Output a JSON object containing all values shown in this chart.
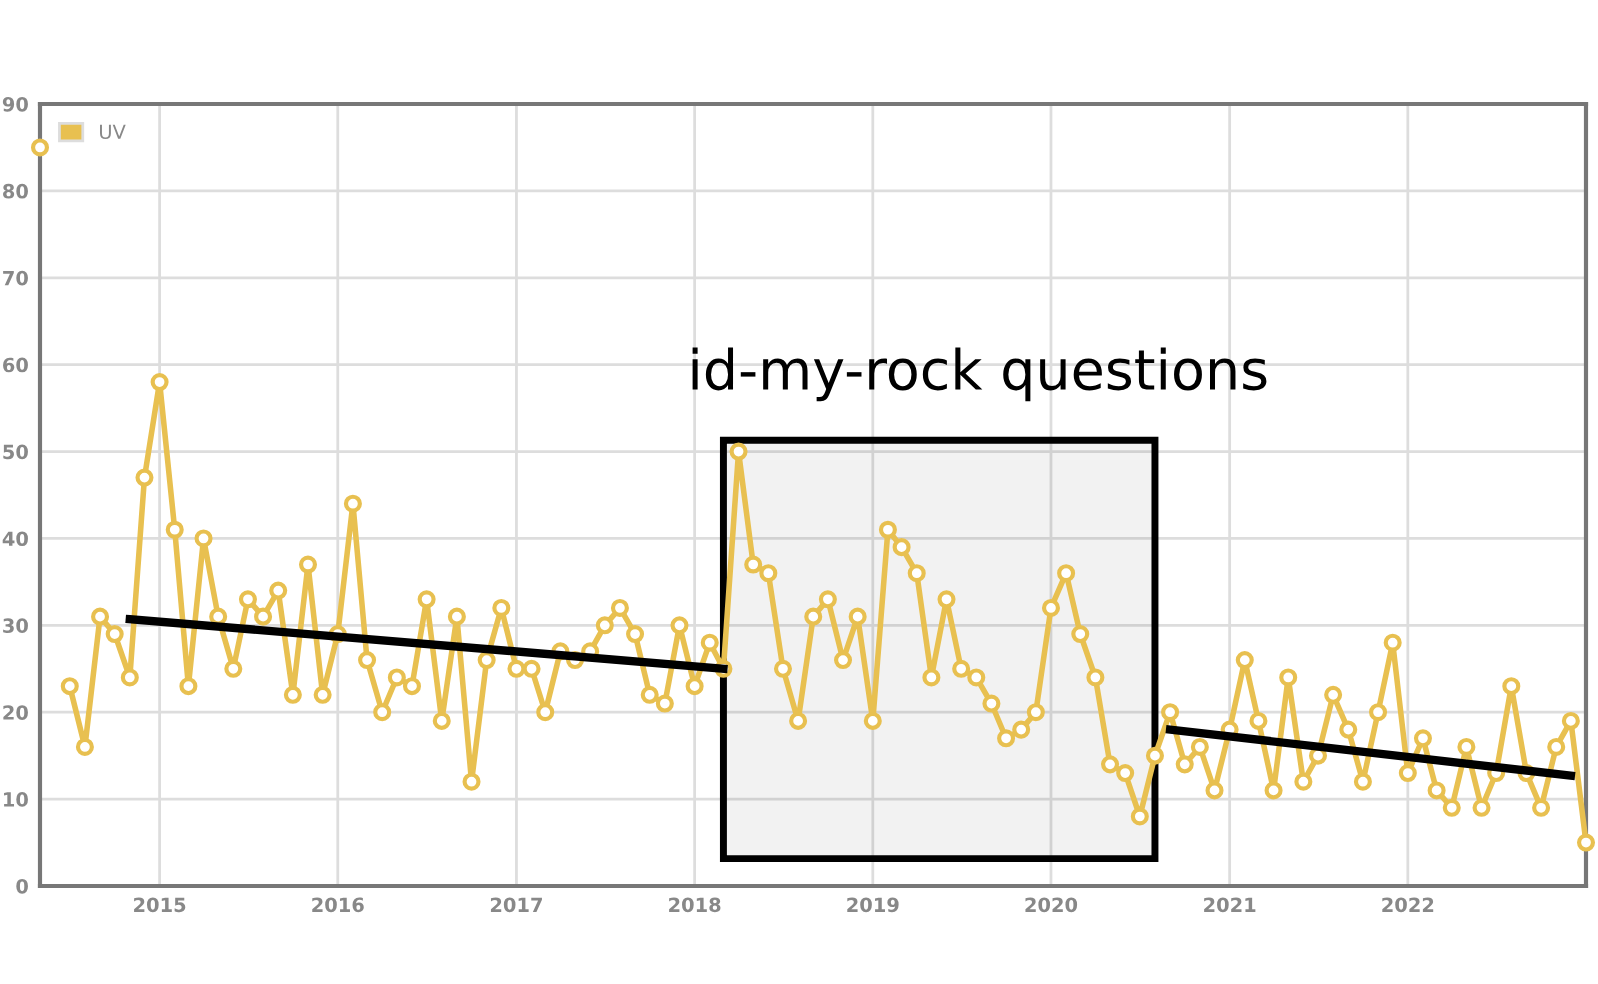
{
  "chart_data": {
    "type": "line",
    "xlim": [
      "2014-05",
      "2023-01"
    ],
    "ylim": [
      0,
      90
    ],
    "yticks": [
      0,
      10,
      20,
      30,
      40,
      50,
      60,
      70,
      80,
      90
    ],
    "xticks": [
      {
        "value": "2015",
        "label": "2015"
      },
      {
        "value": "2016",
        "label": "2016"
      },
      {
        "value": "2017",
        "label": "2017"
      },
      {
        "value": "2018",
        "label": "2018"
      },
      {
        "value": "2019",
        "label": "2019"
      },
      {
        "value": "2020",
        "label": "2020"
      },
      {
        "value": "2021",
        "label": "2021"
      },
      {
        "value": "2022",
        "label": "2022"
      }
    ],
    "grid": true,
    "legend": "top left",
    "marker": "circle",
    "line_style": "solid",
    "x": [
      "2014-05",
      "2014-06",
      "2014-07",
      "2014-08",
      "2014-09",
      "2014-10",
      "2014-11",
      "2014-12",
      "2015-01",
      "2015-02",
      "2015-03",
      "2015-04",
      "2015-05",
      "2015-06",
      "2015-07",
      "2015-08",
      "2015-09",
      "2015-10",
      "2015-11",
      "2015-12",
      "2016-01",
      "2016-02",
      "2016-03",
      "2016-04",
      "2016-05",
      "2016-06",
      "2016-07",
      "2016-08",
      "2016-09",
      "2016-10",
      "2016-11",
      "2016-12",
      "2017-01",
      "2017-02",
      "2017-03",
      "2017-04",
      "2017-05",
      "2017-06",
      "2017-07",
      "2017-08",
      "2017-09",
      "2017-10",
      "2017-11",
      "2017-12",
      "2018-01",
      "2018-02",
      "2018-03",
      "2018-04",
      "2018-05",
      "2018-06",
      "2018-07",
      "2018-08",
      "2018-09",
      "2018-10",
      "2018-11",
      "2018-12",
      "2019-01",
      "2019-02",
      "2019-03",
      "2019-04",
      "2019-05",
      "2019-06",
      "2019-07",
      "2019-08",
      "2019-09",
      "2019-10",
      "2019-11",
      "2019-12",
      "2020-01",
      "2020-02",
      "2020-03",
      "2020-04",
      "2020-05",
      "2020-06",
      "2020-07",
      "2020-08",
      "2020-09",
      "2020-10",
      "2020-11",
      "2020-12",
      "2021-01",
      "2021-02",
      "2021-03",
      "2021-04",
      "2021-05",
      "2021-06",
      "2021-07",
      "2021-08",
      "2021-09",
      "2021-10",
      "2021-11",
      "2021-12",
      "2022-01",
      "2022-02",
      "2022-03",
      "2022-04",
      "2022-05",
      "2022-06",
      "2022-07",
      "2022-08",
      "2022-09",
      "2022-10",
      "2022-11",
      "2022-12",
      "2023-01"
    ],
    "series": [
      {
        "name": "UV",
        "color": "#e8c050",
        "values": [
          85,
          null,
          23,
          16,
          31,
          29,
          24,
          47,
          58,
          41,
          23,
          40,
          31,
          25,
          33,
          31,
          34,
          22,
          37,
          22,
          29,
          44,
          26,
          20,
          24,
          23,
          33,
          19,
          31,
          12,
          26,
          32,
          25,
          25,
          20,
          27,
          26,
          27,
          30,
          32,
          29,
          22,
          21,
          30,
          23,
          28,
          25,
          50,
          37,
          36,
          25,
          19,
          31,
          33,
          26,
          31,
          19,
          41,
          39,
          36,
          24,
          33,
          25,
          24,
          21,
          17,
          18,
          20,
          32,
          36,
          29,
          24,
          14,
          13,
          8,
          15,
          20,
          14,
          16,
          11,
          18,
          26,
          19,
          11,
          24,
          12,
          15,
          22,
          18,
          12,
          20,
          28,
          13,
          17,
          11,
          9,
          16,
          9,
          13,
          23,
          13,
          9,
          16,
          19,
          5
        ]
      },
      {
        "type": "line",
        "color": "#000000",
        "marker": "none",
        "x": [
          "2014-11",
          "2018-03"
        ],
        "values": [
          30.7,
          25
        ]
      },
      {
        "type": "line",
        "color": "#000000",
        "marker": "none",
        "x": [
          "2020-09",
          "2022-12"
        ],
        "values": [
          18,
          12.7
        ]
      }
    ],
    "bands": [
      {
        "axis": "x",
        "from": "2018-03",
        "to": "2020-08",
        "label": "id-my-rock questions",
        "color": "#000000"
      }
    ]
  }
}
